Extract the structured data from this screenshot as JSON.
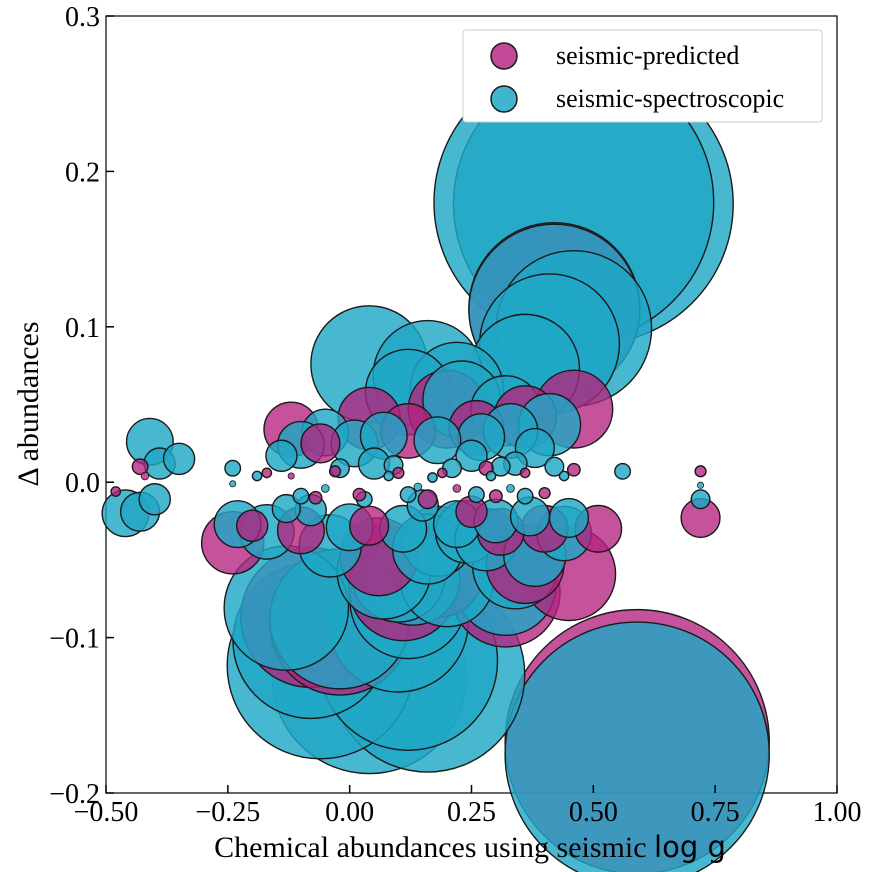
{
  "chart_data": {
    "type": "scatter",
    "xlabel": "Chemical abundances using seismic",
    "xlabel_math": "log g",
    "ylabel": "Δ abundances",
    "xlim": [
      -0.5,
      1.0
    ],
    "ylim": [
      -0.2,
      0.3
    ],
    "xticks": [
      -0.5,
      -0.25,
      0.0,
      0.25,
      0.5,
      0.75,
      1.0
    ],
    "xtick_labels": [
      "−0.50",
      "−0.25",
      "0.00",
      "0.25",
      "0.50",
      "0.75",
      "1.00"
    ],
    "yticks": [
      -0.2,
      -0.1,
      0.0,
      0.1,
      0.2,
      0.3
    ],
    "ytick_labels": [
      "−0.2",
      "−0.1",
      "0.0",
      "0.1",
      "0.2",
      "0.3"
    ],
    "grid": false,
    "legend_position": "top-right",
    "series": [
      {
        "name": "seismic-predicted",
        "color": "#b5227f",
        "points": [
          {
            "x": 0.59,
            "y": -0.167,
            "s": 0.17
          },
          {
            "x": 0.42,
            "y": 0.112,
            "s": 0.11
          },
          {
            "x": 0.46,
            "y": 0.047,
            "s": 0.05
          },
          {
            "x": 0.45,
            "y": -0.059,
            "s": 0.06
          },
          {
            "x": 0.51,
            "y": -0.03,
            "s": 0.03
          },
          {
            "x": 0.72,
            "y": -0.023,
            "s": 0.025
          },
          {
            "x": 0.72,
            "y": 0.007,
            "s": 0.007
          },
          {
            "x": 0.32,
            "y": -0.071,
            "s": 0.07
          },
          {
            "x": 0.36,
            "y": -0.053,
            "s": 0.05
          },
          {
            "x": 0.4,
            "y": -0.03,
            "s": 0.03
          },
          {
            "x": -0.24,
            "y": -0.039,
            "s": 0.04
          },
          {
            "x": -0.12,
            "y": 0.034,
            "s": 0.035
          },
          {
            "x": -0.1,
            "y": -0.031,
            "s": 0.03
          },
          {
            "x": -0.08,
            "y": -0.087,
            "s": 0.09
          },
          {
            "x": -0.02,
            "y": -0.092,
            "s": 0.09
          },
          {
            "x": 0.04,
            "y": 0.041,
            "s": 0.04
          },
          {
            "x": 0.12,
            "y": 0.033,
            "s": 0.035
          },
          {
            "x": 0.2,
            "y": 0.047,
            "s": 0.05
          },
          {
            "x": 0.11,
            "y": -0.067,
            "s": 0.07
          },
          {
            "x": 0.18,
            "y": -0.057,
            "s": 0.06
          },
          {
            "x": 0.06,
            "y": -0.048,
            "s": 0.05
          },
          {
            "x": 0.26,
            "y": 0.035,
            "s": 0.035
          },
          {
            "x": 0.31,
            "y": -0.032,
            "s": 0.03
          },
          {
            "x": 0.36,
            "y": 0.042,
            "s": 0.04
          },
          {
            "x": 0.04,
            "y": -0.028,
            "s": 0.025
          },
          {
            "x": -0.06,
            "y": 0.025,
            "s": 0.025
          },
          {
            "x": 0.16,
            "y": -0.011,
            "s": 0.012
          },
          {
            "x": -0.43,
            "y": 0.01,
            "s": 0.01
          },
          {
            "x": -0.42,
            "y": 0.004,
            "s": 0.005
          },
          {
            "x": -0.48,
            "y": -0.006,
            "s": 0.006
          },
          {
            "x": -0.2,
            "y": -0.028,
            "s": 0.02
          },
          {
            "x": 0.25,
            "y": -0.019,
            "s": 0.02
          },
          {
            "x": 0.46,
            "y": 0.008,
            "s": 0.008
          },
          {
            "x": 0.28,
            "y": 0.009,
            "s": 0.009
          },
          {
            "x": -0.03,
            "y": 0.007,
            "s": 0.007
          },
          {
            "x": 0.1,
            "y": 0.006,
            "s": 0.007
          },
          {
            "x": 0.19,
            "y": 0.006,
            "s": 0.006
          },
          {
            "x": 0.36,
            "y": 0.006,
            "s": 0.006
          },
          {
            "x": -0.17,
            "y": 0.006,
            "s": 0.006
          },
          {
            "x": -0.07,
            "y": -0.01,
            "s": 0.008
          },
          {
            "x": 0.02,
            "y": -0.008,
            "s": 0.008
          },
          {
            "x": 0.3,
            "y": -0.009,
            "s": 0.008
          },
          {
            "x": 0.4,
            "y": -0.007,
            "s": 0.007
          },
          {
            "x": 0.22,
            "y": -0.004,
            "s": 0.005
          },
          {
            "x": -0.12,
            "y": 0.004,
            "s": 0.004
          }
        ]
      },
      {
        "name": "seismic-spectroscopic",
        "color": "#20a7c6",
        "points": [
          {
            "x": 0.5,
            "y": 0.179,
            "s": 0.18
          },
          {
            "x": 0.46,
            "y": 0.18,
            "s": 0.18
          },
          {
            "x": 0.59,
            "y": -0.175,
            "s": 0.17
          },
          {
            "x": 0.42,
            "y": 0.111,
            "s": 0.11
          },
          {
            "x": 0.46,
            "y": 0.099,
            "s": 0.1
          },
          {
            "x": 0.41,
            "y": 0.089,
            "s": 0.09
          },
          {
            "x": 0.36,
            "y": 0.073,
            "s": 0.07
          },
          {
            "x": 0.04,
            "y": -0.125,
            "s": 0.125
          },
          {
            "x": 0.16,
            "y": -0.124,
            "s": 0.125
          },
          {
            "x": -0.06,
            "y": -0.118,
            "s": 0.12
          },
          {
            "x": 0.12,
            "y": -0.115,
            "s": 0.115
          },
          {
            "x": -0.08,
            "y": -0.102,
            "s": 0.1
          },
          {
            "x": 0.1,
            "y": -0.09,
            "s": 0.09
          },
          {
            "x": -0.02,
            "y": -0.088,
            "s": 0.09
          },
          {
            "x": -0.13,
            "y": -0.081,
            "s": 0.08
          },
          {
            "x": 0.12,
            "y": -0.076,
            "s": 0.075
          },
          {
            "x": 0.04,
            "y": 0.076,
            "s": 0.075
          },
          {
            "x": 0.16,
            "y": 0.069,
            "s": 0.07
          },
          {
            "x": 0.13,
            "y": -0.062,
            "s": 0.06
          },
          {
            "x": 0.1,
            "y": -0.06,
            "s": 0.06
          },
          {
            "x": 0.32,
            "y": -0.066,
            "s": 0.065
          },
          {
            "x": 0.34,
            "y": -0.054,
            "s": 0.055
          },
          {
            "x": 0.2,
            "y": -0.063,
            "s": 0.06
          },
          {
            "x": 0.07,
            "y": -0.058,
            "s": 0.06
          },
          {
            "x": 0.22,
            "y": 0.06,
            "s": 0.06
          },
          {
            "x": 0.23,
            "y": 0.053,
            "s": 0.05
          },
          {
            "x": 0.12,
            "y": 0.058,
            "s": 0.055
          },
          {
            "x": 0.32,
            "y": 0.046,
            "s": 0.045
          },
          {
            "x": 0.41,
            "y": 0.037,
            "s": 0.04
          },
          {
            "x": 0.27,
            "y": 0.029,
            "s": 0.03
          },
          {
            "x": -0.05,
            "y": 0.032,
            "s": 0.03
          },
          {
            "x": 0.18,
            "y": -0.038,
            "s": 0.045
          },
          {
            "x": 0.16,
            "y": -0.043,
            "s": 0.045
          },
          {
            "x": 0.24,
            "y": -0.032,
            "s": 0.04
          },
          {
            "x": 0.28,
            "y": -0.037,
            "s": 0.04
          },
          {
            "x": -0.04,
            "y": -0.041,
            "s": 0.04
          },
          {
            "x": -0.17,
            "y": -0.032,
            "s": 0.035
          },
          {
            "x": 0.33,
            "y": 0.033,
            "s": 0.035
          },
          {
            "x": 0.44,
            "y": -0.033,
            "s": 0.035
          },
          {
            "x": 0.38,
            "y": -0.047,
            "s": 0.04
          },
          {
            "x": -0.41,
            "y": 0.026,
            "s": 0.03
          },
          {
            "x": -0.46,
            "y": -0.02,
            "s": 0.03
          },
          {
            "x": -0.43,
            "y": -0.019,
            "s": 0.025
          },
          {
            "x": -0.4,
            "y": -0.011,
            "s": 0.02
          },
          {
            "x": -0.39,
            "y": 0.012,
            "s": 0.02
          },
          {
            "x": -0.35,
            "y": 0.015,
            "s": 0.02
          },
          {
            "x": -0.23,
            "y": -0.027,
            "s": 0.03
          },
          {
            "x": -0.1,
            "y": 0.024,
            "s": 0.03
          },
          {
            "x": 0.01,
            "y": 0.025,
            "s": 0.03
          },
          {
            "x": 0.18,
            "y": 0.027,
            "s": 0.03
          },
          {
            "x": 0.07,
            "y": 0.03,
            "s": 0.03
          },
          {
            "x": 0.0,
            "y": -0.029,
            "s": 0.03
          },
          {
            "x": 0.11,
            "y": -0.03,
            "s": 0.03
          },
          {
            "x": 0.22,
            "y": -0.027,
            "s": 0.03
          },
          {
            "x": 0.3,
            "y": -0.025,
            "s": 0.028
          },
          {
            "x": 0.37,
            "y": -0.022,
            "s": 0.025
          },
          {
            "x": 0.45,
            "y": -0.023,
            "s": 0.025
          },
          {
            "x": 0.38,
            "y": 0.022,
            "s": 0.025
          },
          {
            "x": -0.14,
            "y": 0.017,
            "s": 0.02
          },
          {
            "x": 0.05,
            "y": 0.012,
            "s": 0.02
          },
          {
            "x": 0.25,
            "y": 0.017,
            "s": 0.02
          },
          {
            "x": -0.08,
            "y": -0.018,
            "s": 0.02
          },
          {
            "x": 0.15,
            "y": -0.015,
            "s": 0.02
          },
          {
            "x": -0.13,
            "y": -0.017,
            "s": 0.018
          },
          {
            "x": 0.34,
            "y": 0.012,
            "s": 0.015
          },
          {
            "x": -0.02,
            "y": 0.009,
            "s": 0.012
          },
          {
            "x": 0.09,
            "y": 0.011,
            "s": 0.012
          },
          {
            "x": 0.21,
            "y": 0.009,
            "s": 0.012
          },
          {
            "x": 0.31,
            "y": 0.01,
            "s": 0.012
          },
          {
            "x": 0.42,
            "y": 0.01,
            "s": 0.012
          },
          {
            "x": -0.24,
            "y": 0.009,
            "s": 0.01
          },
          {
            "x": 0.56,
            "y": 0.007,
            "s": 0.01
          },
          {
            "x": 0.72,
            "y": -0.011,
            "s": 0.012
          },
          {
            "x": -0.1,
            "y": -0.009,
            "s": 0.01
          },
          {
            "x": 0.03,
            "y": -0.011,
            "s": 0.01
          },
          {
            "x": 0.12,
            "y": -0.008,
            "s": 0.01
          },
          {
            "x": 0.26,
            "y": -0.008,
            "s": 0.01
          },
          {
            "x": 0.36,
            "y": -0.009,
            "s": 0.01
          },
          {
            "x": -0.19,
            "y": 0.004,
            "s": 0.006
          },
          {
            "x": 0.08,
            "y": 0.004,
            "s": 0.006
          },
          {
            "x": 0.17,
            "y": 0.003,
            "s": 0.006
          },
          {
            "x": 0.29,
            "y": 0.004,
            "s": 0.006
          },
          {
            "x": 0.44,
            "y": 0.004,
            "s": 0.006
          },
          {
            "x": -0.05,
            "y": -0.004,
            "s": 0.005
          },
          {
            "x": 0.14,
            "y": -0.003,
            "s": 0.005
          },
          {
            "x": 0.33,
            "y": -0.004,
            "s": 0.005
          },
          {
            "x": 0.72,
            "y": -0.002,
            "s": 0.004
          },
          {
            "x": -0.24,
            "y": -0.001,
            "s": 0.004
          }
        ]
      }
    ]
  }
}
